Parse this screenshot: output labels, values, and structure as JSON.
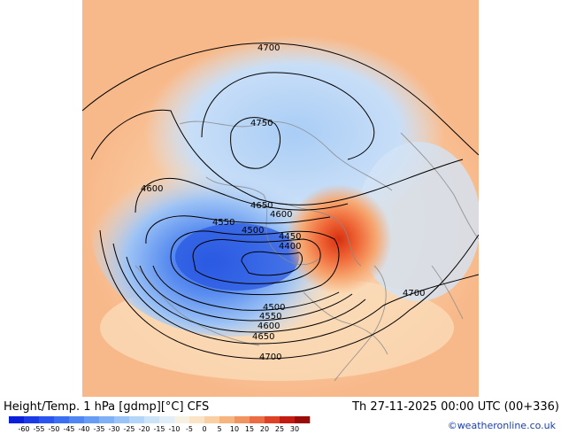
{
  "title": "Height/Temp. 1 hPa [gdmp][°C] CFS",
  "valid_time": "Th 27-11-2025 00:00 UTC (00+336)",
  "credit": "©weatheronline.co.uk",
  "contour_labels": [
    {
      "id": "4700-top",
      "text": "4700"
    },
    {
      "id": "4750",
      "text": "4750"
    },
    {
      "id": "4600-left",
      "text": "4600"
    },
    {
      "id": "4650-mid",
      "text": "4650"
    },
    {
      "id": "4600-mid",
      "text": "4600"
    },
    {
      "id": "4550-left",
      "text": "4550"
    },
    {
      "id": "4500-left",
      "text": "4500"
    },
    {
      "id": "4450",
      "text": "4450"
    },
    {
      "id": "4400",
      "text": "4400"
    },
    {
      "id": "4700-right",
      "text": "4700"
    },
    {
      "id": "4500-low",
      "text": "4500"
    },
    {
      "id": "4550-low",
      "text": "4550"
    },
    {
      "id": "4600-low",
      "text": "4600"
    },
    {
      "id": "4650-low",
      "text": "4650"
    },
    {
      "id": "4700-low",
      "text": "4700"
    }
  ],
  "colorbar": {
    "ticks": [
      "-60",
      "-55",
      "-50",
      "-45",
      "-40",
      "-35",
      "-30",
      "-25",
      "-20",
      "-15",
      "-10",
      "-5",
      "0",
      "5",
      "10",
      "15",
      "20",
      "25",
      "30"
    ],
    "colors": [
      "#0a1fd9",
      "#1a3be6",
      "#2a55ee",
      "#3b6ff2",
      "#4f86f4",
      "#679cf5",
      "#80b1f6",
      "#9ac4f7",
      "#b3d5f8",
      "#cde4f8",
      "#e2eef7",
      "#f6f1e3",
      "#fbe4c6",
      "#f9cfa3",
      "#f6b47f",
      "#f29460",
      "#ec6d43",
      "#dd4226",
      "#c21b10",
      "#9a0b08"
    ]
  }
}
